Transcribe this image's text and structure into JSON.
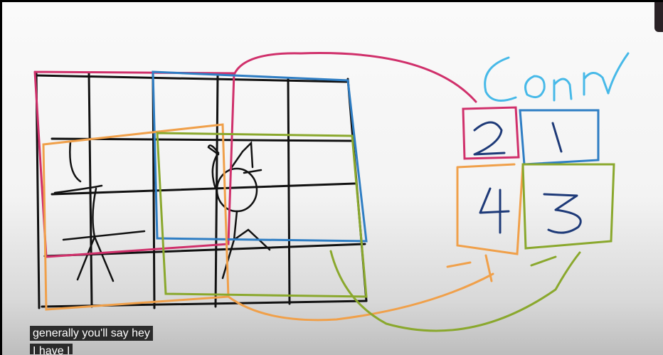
{
  "whiteboard": {
    "label": "Conn",
    "cells": [
      "2",
      "1",
      "4",
      "3"
    ]
  },
  "captions": [
    "generally you'll say hey",
    "I have I"
  ],
  "colors": {
    "ink": "#111111",
    "red": "#d0306b",
    "blue": "#2f7ec4",
    "orange": "#f0a04a",
    "green": "#8aa82d",
    "cyan": "#47b9e8"
  }
}
